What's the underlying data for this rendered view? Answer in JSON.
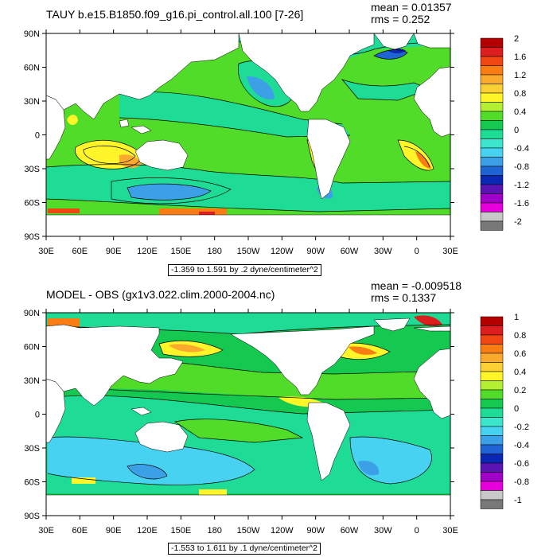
{
  "panels": [
    {
      "title": "TAUY b.e15.B1850.f09_g16.pi_control.all.100 [7-26]",
      "mean": "mean = 0.01357",
      "rms": "rms = 0.252",
      "range": "-1.359 to 1.591 by .2 dyne/centimeter^2",
      "colorbar_labels": [
        "2",
        "1.6",
        "1.2",
        "0.8",
        "0.4",
        "0",
        "-0.4",
        "-0.8",
        "-1.2",
        "-1.6",
        "-2"
      ],
      "colorbar_colors": [
        "#b40000",
        "#dc1e1e",
        "#f04614",
        "#fa7d14",
        "#fcaa2d",
        "#fbd034",
        "#fff528",
        "#b4f032",
        "#50dc28",
        "#14c850",
        "#1edc96",
        "#3ce6cd",
        "#46d2f0",
        "#3ca0e6",
        "#1e64d2",
        "#0a28b4",
        "#5a14b4",
        "#a000c8",
        "#e600dc",
        "#c8c8c8",
        "#787878"
      ]
    },
    {
      "title": "MODEL - OBS (gx1v3.022.clim.2000-2004.nc)",
      "mean": "mean = -0.009518",
      "rms": "rms = 0.1337",
      "range": "-1.553 to 1.611 by .1 dyne/centimeter^2",
      "colorbar_labels": [
        "1",
        "0.8",
        "0.6",
        "0.4",
        "0.2",
        "0",
        "-0.2",
        "-0.4",
        "-0.6",
        "-0.8",
        "-1"
      ],
      "colorbar_colors": [
        "#b40000",
        "#dc1e1e",
        "#f04614",
        "#fa7d14",
        "#fcaa2d",
        "#fbd034",
        "#fff528",
        "#b4f032",
        "#50dc28",
        "#14c850",
        "#1edc96",
        "#3ce6cd",
        "#46d2f0",
        "#3ca0e6",
        "#1e64d2",
        "#0a28b4",
        "#5a14b4",
        "#a000c8",
        "#e600dc",
        "#c8c8c8",
        "#787878"
      ]
    }
  ],
  "lat_labels": [
    "90N",
    "60N",
    "30N",
    "0",
    "30S",
    "60S",
    "90S"
  ],
  "lon_labels": [
    "30E",
    "60E",
    "90E",
    "120E",
    "150E",
    "180",
    "150W",
    "120W",
    "90W",
    "60W",
    "30W",
    "0",
    "30E"
  ],
  "map_colors": {
    "ocean_base": "#50dc28",
    "ocean_alt": "#1edc96",
    "land": "#ffffff"
  }
}
